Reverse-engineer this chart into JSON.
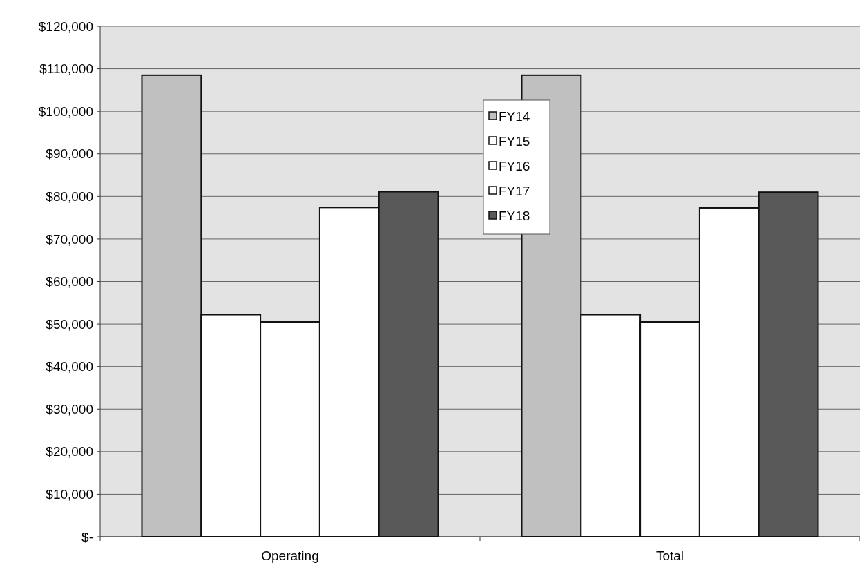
{
  "chart_data": {
    "type": "bar",
    "categories": [
      "Operating",
      "Total"
    ],
    "series": [
      {
        "name": "FY14",
        "color": "#c0c0c0",
        "values": [
          108500,
          108500
        ]
      },
      {
        "name": "FY15",
        "color": "#ffffff",
        "values": [
          52200,
          52200
        ]
      },
      {
        "name": "FY16",
        "color": "#ffffff",
        "values": [
          50500,
          50500
        ]
      },
      {
        "name": "FY17",
        "color": "#ffffff",
        "values": [
          77400,
          77300
        ]
      },
      {
        "name": "FY18",
        "color": "#595959",
        "values": [
          81100,
          81000
        ]
      }
    ],
    "ylim": [
      0,
      120000
    ],
    "yticks": [
      {
        "value": 0,
        "label": "$-"
      },
      {
        "value": 10000,
        "label": "$10,000"
      },
      {
        "value": 20000,
        "label": "$20,000"
      },
      {
        "value": 30000,
        "label": "$30,000"
      },
      {
        "value": 40000,
        "label": "$40,000"
      },
      {
        "value": 50000,
        "label": "$50,000"
      },
      {
        "value": 60000,
        "label": "$60,000"
      },
      {
        "value": 70000,
        "label": "$70,000"
      },
      {
        "value": 80000,
        "label": "$80,000"
      },
      {
        "value": 90000,
        "label": "$90,000"
      },
      {
        "value": 100000,
        "label": "$100,000"
      },
      {
        "value": 110000,
        "label": "$110,000"
      },
      {
        "value": 120000,
        "label": "$120,000"
      }
    ],
    "grid": "y",
    "legend": "top"
  }
}
